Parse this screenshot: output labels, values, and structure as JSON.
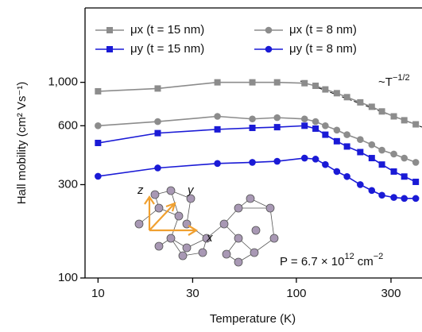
{
  "chart_data": {
    "type": "line",
    "x_label": "Temperature (K)",
    "y_label": "Hall mobility (cm² Vs⁻¹)",
    "x_log": true,
    "y_log": true,
    "xlim": [
      8.6,
      430
    ],
    "ylim": [
      100,
      2400
    ],
    "xticks": [
      10,
      30,
      100,
      300
    ],
    "yticks": [
      100,
      300,
      600,
      {
        "value": 1000,
        "label": "1,000"
      }
    ],
    "legend": "upper left",
    "x": [
      10,
      20,
      40,
      60,
      80,
      110,
      125,
      140,
      160,
      180,
      210,
      240,
      270,
      310,
      350,
      400
    ],
    "series": [
      {
        "name": "μx (t = 15 nm)",
        "color": "#8c8c8c",
        "marker": "square",
        "values": [
          900,
          930,
          1000,
          1000,
          1000,
          990,
          960,
          920,
          880,
          840,
          790,
          750,
          710,
          670,
          640,
          610
        ]
      },
      {
        "name": "μx (t = 8 nm)",
        "color": "#8c8c8c",
        "marker": "circle",
        "values": [
          600,
          630,
          670,
          650,
          660,
          650,
          630,
          600,
          570,
          540,
          510,
          480,
          450,
          430,
          410,
          390
        ]
      },
      {
        "name": "μy (t = 15 nm)",
        "color": "#1a1ad6",
        "marker": "square",
        "values": [
          490,
          550,
          575,
          585,
          590,
          600,
          580,
          540,
          500,
          470,
          440,
          410,
          380,
          350,
          330,
          310
        ]
      },
      {
        "name": "μy (t = 8 nm)",
        "color": "#1a1ad6",
        "marker": "circle",
        "values": [
          331,
          365,
          385,
          390,
          395,
          410,
          405,
          380,
          350,
          330,
          300,
          280,
          265,
          258,
          255,
          255
        ]
      }
    ],
    "annotations": {
      "trend": "~T",
      "trend_exp": "−1/2",
      "density": "P = 6.7 × 10",
      "density_exp": "12",
      "density_unit": "cm",
      "density_unit_exp": "−2",
      "inset_z": "z",
      "inset_y": "y",
      "inset_x": "x"
    }
  }
}
